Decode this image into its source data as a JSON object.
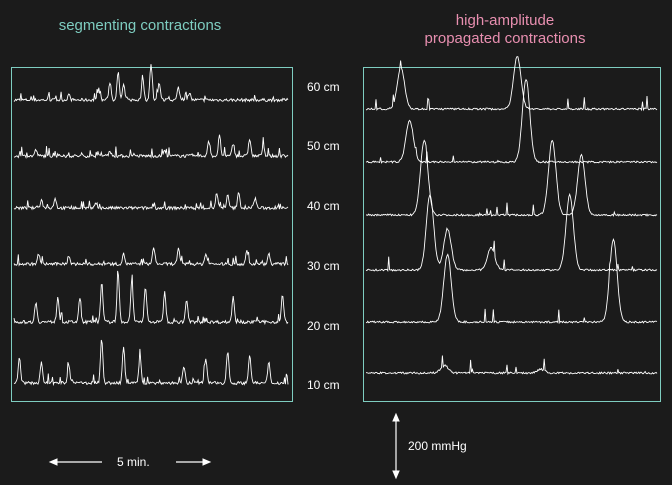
{
  "colors": {
    "background": "#1b1b1b",
    "frame": "#7ecdc0",
    "trace": "#ffffff",
    "left_title": "#7ecdc0",
    "right_title": "#e88fb0"
  },
  "titles": {
    "left": "segmenting contractions",
    "right_line1": "high-amplitude",
    "right_line2": "propagated contractions"
  },
  "scale": {
    "time_label": "5 min.",
    "pressure_label": "200 mmHg"
  },
  "chart_data": {
    "type": "line",
    "title": "",
    "levels": [
      "60 cm",
      "50 cm",
      "40 cm",
      "30 cm",
      "20 cm",
      "10 cm"
    ],
    "time_scale_minutes": 5,
    "pressure_scale_mmHg": 200,
    "panels": [
      {
        "name": "segmenting contractions",
        "series": [
          {
            "level": "60 cm",
            "peaks": [
              [
                0.2,
                0.1
              ],
              [
                0.31,
                0.2
              ],
              [
                0.35,
                0.35
              ],
              [
                0.38,
                0.55
              ],
              [
                0.4,
                0.3
              ],
              [
                0.47,
                0.4
              ],
              [
                0.5,
                0.7
              ],
              [
                0.53,
                0.35
              ],
              [
                0.6,
                0.25
              ],
              [
                0.64,
                0.15
              ]
            ]
          },
          {
            "level": "50 cm",
            "peaks": [
              [
                0.08,
                0.12
              ],
              [
                0.35,
                0.1
              ],
              [
                0.55,
                0.1
              ],
              [
                0.71,
                0.3
              ],
              [
                0.75,
                0.4
              ],
              [
                0.8,
                0.25
              ],
              [
                0.86,
                0.35
              ],
              [
                0.91,
                0.2
              ]
            ]
          },
          {
            "level": "40 cm",
            "peaks": [
              [
                0.1,
                0.15
              ],
              [
                0.15,
                0.2
              ],
              [
                0.3,
                0.1
              ],
              [
                0.74,
                0.3
              ],
              [
                0.78,
                0.25
              ],
              [
                0.82,
                0.3
              ],
              [
                0.88,
                0.2
              ]
            ]
          },
          {
            "level": "30 cm",
            "peaks": [
              [
                0.09,
                0.2
              ],
              [
                0.2,
                0.15
              ],
              [
                0.4,
                0.2
              ],
              [
                0.51,
                0.35
              ],
              [
                0.6,
                0.3
              ],
              [
                0.7,
                0.2
              ],
              [
                0.85,
                0.25
              ],
              [
                0.93,
                0.2
              ]
            ]
          },
          {
            "level": "20 cm",
            "peaks": [
              [
                0.08,
                0.4
              ],
              [
                0.16,
                0.5
              ],
              [
                0.24,
                0.45
              ],
              [
                0.32,
                0.8
              ],
              [
                0.38,
                1.0
              ],
              [
                0.43,
                0.85
              ],
              [
                0.48,
                0.7
              ],
              [
                0.55,
                0.6
              ],
              [
                0.63,
                0.45
              ],
              [
                0.8,
                0.5
              ],
              [
                0.98,
                0.55
              ]
            ]
          },
          {
            "level": "10 cm",
            "peaks": [
              [
                0.02,
                0.5
              ],
              [
                0.1,
                0.4
              ],
              [
                0.2,
                0.35
              ],
              [
                0.32,
                0.9
              ],
              [
                0.4,
                0.7
              ],
              [
                0.46,
                0.55
              ],
              [
                0.62,
                0.35
              ],
              [
                0.7,
                0.5
              ],
              [
                0.78,
                0.65
              ],
              [
                0.86,
                0.55
              ],
              [
                0.93,
                0.4
              ]
            ]
          }
        ]
      },
      {
        "name": "high-amplitude propagated contractions",
        "series": [
          {
            "level": "60 cm",
            "peaks": [
              [
                0.12,
                0.55
              ],
              [
                0.52,
                0.7
              ]
            ]
          },
          {
            "level": "50 cm",
            "peaks": [
              [
                0.15,
                0.55
              ],
              [
                0.55,
                1.1
              ]
            ]
          },
          {
            "level": "40 cm",
            "peaks": [
              [
                0.2,
                1.0
              ],
              [
                0.64,
                1.0
              ],
              [
                0.74,
                0.8
              ]
            ]
          },
          {
            "level": "30 cm",
            "peaks": [
              [
                0.22,
                1.0
              ],
              [
                0.28,
                0.55
              ],
              [
                0.43,
                0.3
              ],
              [
                0.7,
                1.0
              ]
            ]
          },
          {
            "level": "20 cm",
            "peaks": [
              [
                0.28,
                0.9
              ],
              [
                0.85,
                1.1
              ]
            ]
          },
          {
            "level": "10 cm",
            "peaks": [
              [
                0.27,
                0.1
              ],
              [
                0.6,
                0.05
              ]
            ]
          }
        ]
      }
    ]
  }
}
